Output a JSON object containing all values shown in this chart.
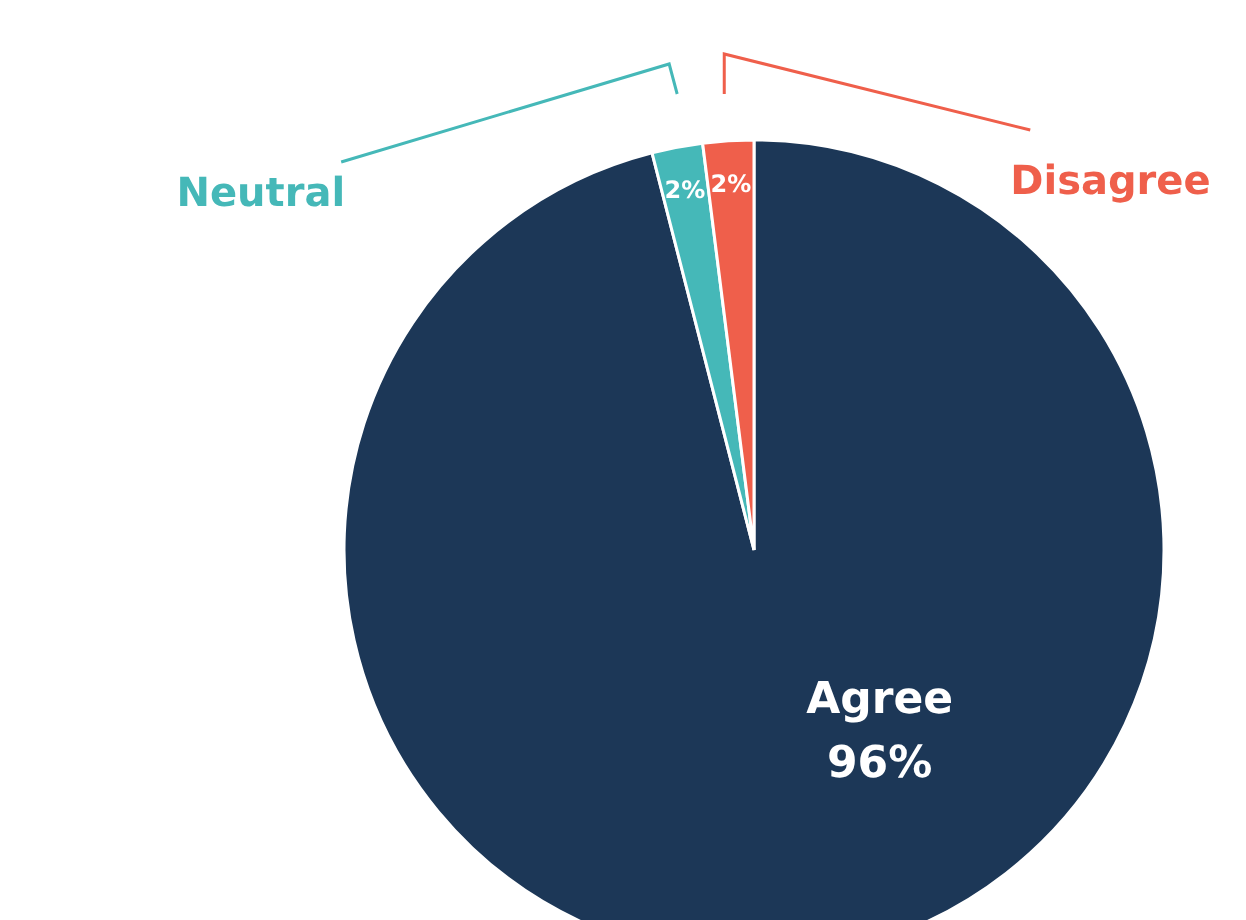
{
  "chart_data": {
    "type": "pie",
    "categories": [
      "Agree",
      "Neutral",
      "Disagree"
    ],
    "values": [
      96,
      2,
      2
    ],
    "value_labels": [
      "96%",
      "2%",
      "2%"
    ],
    "colors": [
      "#1c3757",
      "#45b8b8",
      "#ef5f4b"
    ]
  }
}
